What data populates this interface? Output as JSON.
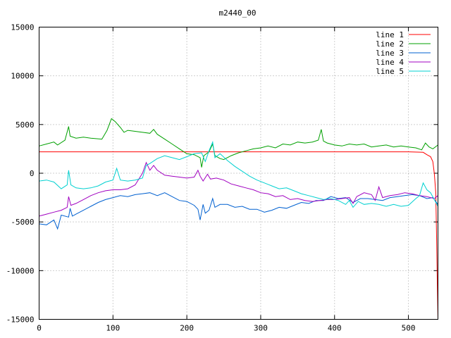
{
  "chart_data": {
    "type": "line",
    "title": "m2440_00",
    "xlabel": "",
    "ylabel": "",
    "xlim": [
      0,
      540
    ],
    "ylim": [
      -15000,
      15000
    ],
    "xticks": [
      0,
      100,
      200,
      300,
      400,
      500
    ],
    "yticks": [
      -15000,
      -10000,
      -5000,
      0,
      5000,
      10000,
      15000
    ],
    "grid": true,
    "legend_position": "top-right",
    "series": [
      {
        "name": "line 1",
        "color": "#ff0000",
        "points": [
          [
            0,
            2200
          ],
          [
            100,
            2200
          ],
          [
            200,
            2200
          ],
          [
            300,
            2200
          ],
          [
            400,
            2200
          ],
          [
            500,
            2200
          ],
          [
            520,
            2150
          ],
          [
            525,
            1900
          ],
          [
            530,
            1700
          ],
          [
            533,
            1200
          ],
          [
            535,
            0
          ],
          [
            537,
            -2000
          ],
          [
            538,
            -6000
          ],
          [
            539,
            -11000
          ],
          [
            540,
            -15000
          ]
        ]
      },
      {
        "name": "line 2",
        "color": "#00a000",
        "points": [
          [
            0,
            2800
          ],
          [
            10,
            3000
          ],
          [
            20,
            3200
          ],
          [
            25,
            2900
          ],
          [
            35,
            3400
          ],
          [
            40,
            4800
          ],
          [
            42,
            3800
          ],
          [
            50,
            3600
          ],
          [
            60,
            3700
          ],
          [
            70,
            3600
          ],
          [
            85,
            3500
          ],
          [
            92,
            4400
          ],
          [
            98,
            5600
          ],
          [
            103,
            5300
          ],
          [
            110,
            4700
          ],
          [
            115,
            4200
          ],
          [
            120,
            4400
          ],
          [
            130,
            4300
          ],
          [
            140,
            4200
          ],
          [
            150,
            4100
          ],
          [
            155,
            4500
          ],
          [
            160,
            4000
          ],
          [
            170,
            3500
          ],
          [
            180,
            3000
          ],
          [
            190,
            2500
          ],
          [
            200,
            2000
          ],
          [
            210,
            1900
          ],
          [
            218,
            1600
          ],
          [
            220,
            600
          ],
          [
            223,
            1800
          ],
          [
            230,
            2200
          ],
          [
            235,
            3000
          ],
          [
            238,
            1800
          ],
          [
            245,
            1500
          ],
          [
            250,
            1400
          ],
          [
            260,
            1800
          ],
          [
            270,
            2100
          ],
          [
            280,
            2300
          ],
          [
            290,
            2500
          ],
          [
            300,
            2600
          ],
          [
            310,
            2800
          ],
          [
            320,
            2600
          ],
          [
            330,
            3000
          ],
          [
            340,
            2900
          ],
          [
            350,
            3200
          ],
          [
            360,
            3100
          ],
          [
            370,
            3200
          ],
          [
            378,
            3400
          ],
          [
            382,
            4500
          ],
          [
            385,
            3300
          ],
          [
            390,
            3100
          ],
          [
            400,
            2900
          ],
          [
            410,
            2800
          ],
          [
            420,
            3000
          ],
          [
            430,
            2900
          ],
          [
            440,
            3000
          ],
          [
            450,
            2700
          ],
          [
            460,
            2800
          ],
          [
            470,
            2900
          ],
          [
            480,
            2700
          ],
          [
            490,
            2800
          ],
          [
            500,
            2700
          ],
          [
            510,
            2600
          ],
          [
            518,
            2400
          ],
          [
            523,
            3100
          ],
          [
            528,
            2700
          ],
          [
            533,
            2500
          ],
          [
            540,
            2900
          ]
        ]
      },
      {
        "name": "line 3",
        "color": "#0060d0",
        "points": [
          [
            0,
            -5200
          ],
          [
            10,
            -5300
          ],
          [
            20,
            -4800
          ],
          [
            25,
            -5700
          ],
          [
            30,
            -4300
          ],
          [
            40,
            -4500
          ],
          [
            42,
            -3600
          ],
          [
            45,
            -4400
          ],
          [
            50,
            -4200
          ],
          [
            60,
            -3800
          ],
          [
            70,
            -3400
          ],
          [
            80,
            -3000
          ],
          [
            90,
            -2700
          ],
          [
            100,
            -2500
          ],
          [
            110,
            -2300
          ],
          [
            120,
            -2400
          ],
          [
            130,
            -2200
          ],
          [
            140,
            -2100
          ],
          [
            150,
            -2000
          ],
          [
            160,
            -2300
          ],
          [
            170,
            -2000
          ],
          [
            180,
            -2400
          ],
          [
            190,
            -2800
          ],
          [
            200,
            -2900
          ],
          [
            210,
            -3300
          ],
          [
            215,
            -3700
          ],
          [
            218,
            -4800
          ],
          [
            222,
            -3200
          ],
          [
            225,
            -4100
          ],
          [
            230,
            -3800
          ],
          [
            235,
            -2600
          ],
          [
            238,
            -3500
          ],
          [
            245,
            -3200
          ],
          [
            255,
            -3200
          ],
          [
            265,
            -3500
          ],
          [
            275,
            -3400
          ],
          [
            285,
            -3700
          ],
          [
            295,
            -3700
          ],
          [
            305,
            -4000
          ],
          [
            315,
            -3800
          ],
          [
            325,
            -3500
          ],
          [
            335,
            -3600
          ],
          [
            345,
            -3300
          ],
          [
            355,
            -3000
          ],
          [
            365,
            -3100
          ],
          [
            375,
            -2800
          ],
          [
            385,
            -2800
          ],
          [
            395,
            -2400
          ],
          [
            405,
            -2600
          ],
          [
            415,
            -2500
          ],
          [
            425,
            -3000
          ],
          [
            435,
            -2600
          ],
          [
            445,
            -2600
          ],
          [
            455,
            -2700
          ],
          [
            465,
            -2800
          ],
          [
            475,
            -2500
          ],
          [
            485,
            -2400
          ],
          [
            495,
            -2300
          ],
          [
            505,
            -2200
          ],
          [
            515,
            -2300
          ],
          [
            525,
            -2600
          ],
          [
            533,
            -2500
          ],
          [
            540,
            -3200
          ]
        ]
      },
      {
        "name": "line 4",
        "color": "#a000c0",
        "points": [
          [
            0,
            -4400
          ],
          [
            10,
            -4200
          ],
          [
            20,
            -4000
          ],
          [
            30,
            -3800
          ],
          [
            38,
            -3500
          ],
          [
            40,
            -2400
          ],
          [
            43,
            -3300
          ],
          [
            50,
            -3100
          ],
          [
            60,
            -2700
          ],
          [
            70,
            -2300
          ],
          [
            80,
            -2000
          ],
          [
            90,
            -1800
          ],
          [
            100,
            -1700
          ],
          [
            110,
            -1700
          ],
          [
            120,
            -1600
          ],
          [
            130,
            -1200
          ],
          [
            140,
            0
          ],
          [
            145,
            1100
          ],
          [
            150,
            300
          ],
          [
            155,
            800
          ],
          [
            160,
            300
          ],
          [
            170,
            -200
          ],
          [
            180,
            -300
          ],
          [
            190,
            -400
          ],
          [
            200,
            -500
          ],
          [
            210,
            -400
          ],
          [
            215,
            300
          ],
          [
            218,
            -300
          ],
          [
            222,
            -800
          ],
          [
            228,
            -100
          ],
          [
            232,
            -600
          ],
          [
            240,
            -500
          ],
          [
            250,
            -700
          ],
          [
            260,
            -1100
          ],
          [
            270,
            -1300
          ],
          [
            280,
            -1500
          ],
          [
            290,
            -1700
          ],
          [
            300,
            -2000
          ],
          [
            310,
            -2100
          ],
          [
            320,
            -2400
          ],
          [
            330,
            -2300
          ],
          [
            340,
            -2700
          ],
          [
            350,
            -2600
          ],
          [
            360,
            -2800
          ],
          [
            370,
            -2900
          ],
          [
            380,
            -2800
          ],
          [
            390,
            -2700
          ],
          [
            400,
            -2700
          ],
          [
            410,
            -2600
          ],
          [
            420,
            -2500
          ],
          [
            425,
            -3100
          ],
          [
            430,
            -2400
          ],
          [
            440,
            -2000
          ],
          [
            450,
            -2200
          ],
          [
            455,
            -2800
          ],
          [
            460,
            -1400
          ],
          [
            465,
            -2500
          ],
          [
            475,
            -2300
          ],
          [
            485,
            -2200
          ],
          [
            495,
            -2000
          ],
          [
            505,
            -2100
          ],
          [
            515,
            -2300
          ],
          [
            525,
            -2400
          ],
          [
            535,
            -2600
          ],
          [
            540,
            -2300
          ]
        ]
      },
      {
        "name": "line 5",
        "color": "#00d0d0",
        "points": [
          [
            0,
            -800
          ],
          [
            10,
            -700
          ],
          [
            20,
            -900
          ],
          [
            30,
            -1600
          ],
          [
            38,
            -1200
          ],
          [
            40,
            300
          ],
          [
            43,
            -1200
          ],
          [
            50,
            -1500
          ],
          [
            60,
            -1600
          ],
          [
            70,
            -1500
          ],
          [
            80,
            -1300
          ],
          [
            90,
            -900
          ],
          [
            100,
            -700
          ],
          [
            105,
            500
          ],
          [
            110,
            -700
          ],
          [
            120,
            -800
          ],
          [
            130,
            -700
          ],
          [
            140,
            -500
          ],
          [
            145,
            800
          ],
          [
            150,
            1000
          ],
          [
            160,
            1500
          ],
          [
            170,
            1800
          ],
          [
            180,
            1600
          ],
          [
            190,
            1400
          ],
          [
            200,
            1700
          ],
          [
            210,
            2000
          ],
          [
            220,
            2100
          ],
          [
            225,
            1200
          ],
          [
            230,
            2300
          ],
          [
            235,
            3200
          ],
          [
            238,
            1600
          ],
          [
            245,
            2000
          ],
          [
            255,
            1300
          ],
          [
            265,
            700
          ],
          [
            275,
            200
          ],
          [
            285,
            -300
          ],
          [
            295,
            -700
          ],
          [
            305,
            -1000
          ],
          [
            315,
            -1300
          ],
          [
            325,
            -1600
          ],
          [
            335,
            -1500
          ],
          [
            345,
            -1800
          ],
          [
            355,
            -2100
          ],
          [
            365,
            -2300
          ],
          [
            375,
            -2500
          ],
          [
            385,
            -2700
          ],
          [
            395,
            -2600
          ],
          [
            405,
            -2800
          ],
          [
            415,
            -3200
          ],
          [
            420,
            -2800
          ],
          [
            425,
            -3500
          ],
          [
            432,
            -2900
          ],
          [
            440,
            -3200
          ],
          [
            450,
            -3100
          ],
          [
            460,
            -3200
          ],
          [
            470,
            -3400
          ],
          [
            480,
            -3200
          ],
          [
            490,
            -3400
          ],
          [
            500,
            -3300
          ],
          [
            510,
            -2600
          ],
          [
            515,
            -2300
          ],
          [
            520,
            -1000
          ],
          [
            525,
            -1700
          ],
          [
            530,
            -2000
          ],
          [
            535,
            -2700
          ],
          [
            540,
            -3400
          ]
        ]
      }
    ]
  }
}
